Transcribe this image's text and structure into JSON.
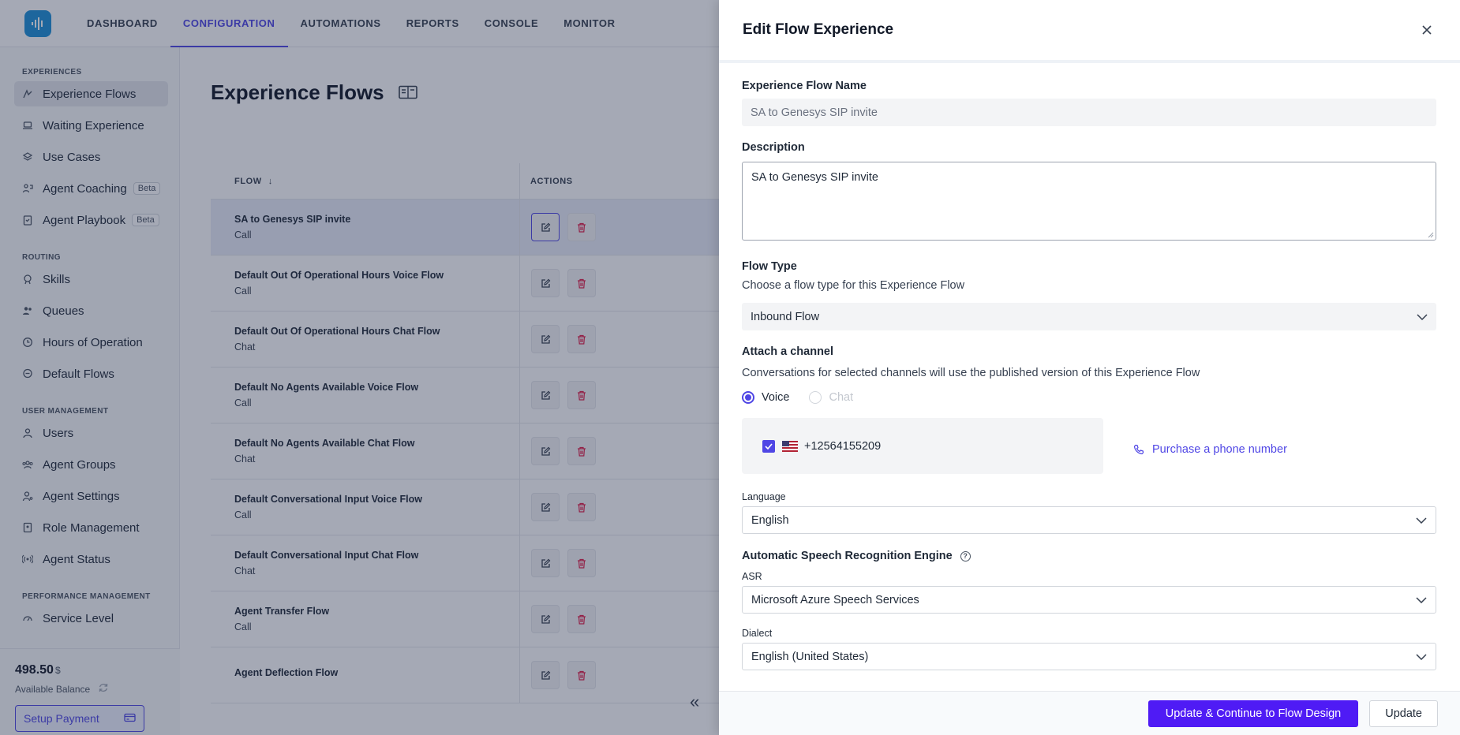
{
  "topnav": {
    "items": [
      "DASHBOARD",
      "CONFIGURATION",
      "AUTOMATIONS",
      "REPORTS",
      "CONSOLE",
      "MONITOR"
    ],
    "active": "CONFIGURATION"
  },
  "sidebar": {
    "sections": {
      "experiences": "EXPERIENCES",
      "routing": "ROUTING",
      "user_management": "USER MANAGEMENT",
      "performance": "PERFORMANCE MANAGEMENT"
    },
    "experiences_items": [
      {
        "label": "Experience Flows",
        "icon": "flow-icon"
      },
      {
        "label": "Waiting Experience",
        "icon": "laptop-icon"
      },
      {
        "label": "Use Cases",
        "icon": "stack-icon"
      },
      {
        "label": "Agent Coaching",
        "icon": "coaching-icon",
        "badge": "Beta"
      },
      {
        "label": "Agent Playbook",
        "icon": "clipboard-icon",
        "badge": "Beta"
      }
    ],
    "routing_items": [
      {
        "label": "Skills",
        "icon": "badge-icon"
      },
      {
        "label": "Queues",
        "icon": "users-icon"
      },
      {
        "label": "Hours of Operation",
        "icon": "clock-icon"
      },
      {
        "label": "Default Flows",
        "icon": "chat-icon"
      }
    ],
    "user_items": [
      {
        "label": "Users",
        "icon": "user-icon"
      },
      {
        "label": "Agent Groups",
        "icon": "group-icon"
      },
      {
        "label": "Agent Settings",
        "icon": "user-settings-icon"
      },
      {
        "label": "Role Management",
        "icon": "id-icon"
      },
      {
        "label": "Agent Status",
        "icon": "broadcast-icon"
      }
    ],
    "performance_items": [
      {
        "label": "Service Level",
        "icon": "gauge-icon"
      }
    ],
    "balance": {
      "amount": "498.50",
      "currency": "$",
      "label": "Available Balance"
    },
    "setup_payment": "Setup Payment"
  },
  "main": {
    "title": "Experience Flows",
    "table": {
      "col_flow": "FLOW",
      "col_actions": "ACTIONS",
      "rows": [
        {
          "name": "SA to Genesys SIP invite",
          "type": "Call"
        },
        {
          "name": "Default Out Of Operational Hours Voice Flow",
          "type": "Call"
        },
        {
          "name": "Default Out Of Operational Hours Chat Flow",
          "type": "Chat"
        },
        {
          "name": "Default No Agents Available Voice Flow",
          "type": "Call"
        },
        {
          "name": "Default No Agents Available Chat Flow",
          "type": "Chat"
        },
        {
          "name": "Default Conversational Input Voice Flow",
          "type": "Call"
        },
        {
          "name": "Default Conversational Input Chat Flow",
          "type": "Chat"
        },
        {
          "name": "Agent Transfer Flow",
          "type": "Call"
        },
        {
          "name": "Agent Deflection Flow",
          "type": ""
        }
      ]
    }
  },
  "drawer": {
    "title": "Edit Flow Experience",
    "name_label": "Experience Flow Name",
    "name_value": "SA to Genesys SIP invite",
    "description_label": "Description",
    "description_value": "SA to Genesys SIP invite",
    "flow_type_label": "Flow Type",
    "flow_type_help": "Choose a flow type for this Experience Flow",
    "flow_type_value": "Inbound Flow",
    "channel_label": "Attach a channel",
    "channel_help": "Conversations for selected channels will use the published version of this Experience Flow",
    "channel_voice": "Voice",
    "channel_chat": "Chat",
    "phone_number": "+12564155209",
    "purchase_link": "Purchase a phone number",
    "language_label": "Language",
    "language_value": "English",
    "asr_section": "Automatic Speech Recognition Engine",
    "asr_label": "ASR",
    "asr_value": "Microsoft Azure Speech Services",
    "dialect_label": "Dialect",
    "dialect_value": "English (United States)",
    "btn_primary": "Update & Continue to Flow Design",
    "btn_secondary": "Update"
  },
  "colors": {
    "accent": "#4f46e5",
    "primary_button": "#4f1bf5",
    "delete": "#e11d48"
  }
}
